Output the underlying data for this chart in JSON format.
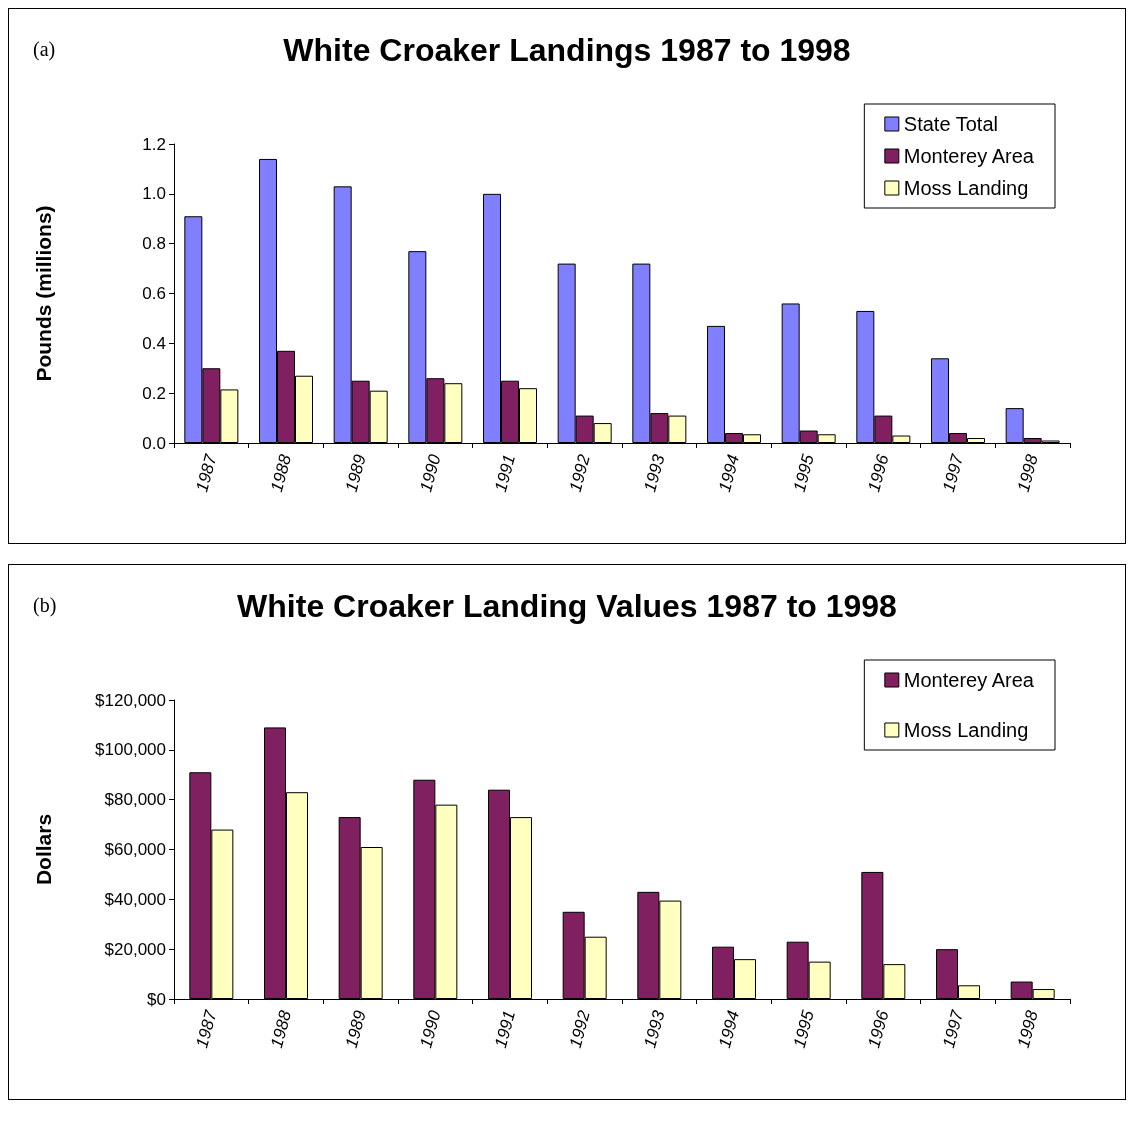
{
  "chart_data": [
    {
      "type": "bar",
      "title": "White Croaker Landings 1987 to 1998",
      "ylabel": "Pounds (millions)",
      "annotations": [
        "(a)"
      ],
      "categories": [
        "1987",
        "1988",
        "1989",
        "1990",
        "1991",
        "1992",
        "1993",
        "1994",
        "1995",
        "1996",
        "1997",
        "1998"
      ],
      "series": [
        {
          "name": "State Total",
          "color": "#8080ff",
          "values": [
            0.91,
            1.14,
            1.03,
            0.77,
            1.0,
            0.72,
            0.72,
            0.47,
            0.56,
            0.53,
            0.34,
            0.14
          ]
        },
        {
          "name": "Monterey Area",
          "color": "#802060",
          "values": [
            0.3,
            0.37,
            0.25,
            0.26,
            0.25,
            0.11,
            0.12,
            0.04,
            0.05,
            0.11,
            0.04,
            0.02
          ]
        },
        {
          "name": "Moss Landing",
          "color": "#ffffc0",
          "values": [
            0.215,
            0.27,
            0.21,
            0.24,
            0.22,
            0.08,
            0.11,
            0.035,
            0.035,
            0.03,
            0.02,
            0.01
          ]
        }
      ],
      "ylim": [
        0,
        1.2
      ],
      "yticks": [
        {
          "value": 0,
          "label": "0.0"
        },
        {
          "value": 0.2,
          "label": "0.2"
        },
        {
          "value": 0.4,
          "label": "0.4"
        },
        {
          "value": 0.6,
          "label": "0.6"
        },
        {
          "value": 0.8,
          "label": "0.8"
        },
        {
          "value": 1,
          "label": "1.0"
        },
        {
          "value": 1.2,
          "label": "1.2"
        }
      ],
      "grid": false,
      "legend": "top right"
    },
    {
      "type": "bar",
      "title": "White Croaker Landing Values 1987 to 1998",
      "ylabel": "Dollars",
      "annotations": [
        "(b)"
      ],
      "categories": [
        "1987",
        "1988",
        "1989",
        "1990",
        "1991",
        "1992",
        "1993",
        "1994",
        "1995",
        "1996",
        "1997",
        "1998"
      ],
      "series": [
        {
          "name": "Monterey Area",
          "color": "#802060",
          "values": [
            91000,
            109000,
            73000,
            88000,
            84000,
            35000,
            43000,
            21000,
            23000,
            51000,
            20000,
            7000
          ]
        },
        {
          "name": "Moss Landing",
          "color": "#ffffc0",
          "values": [
            68000,
            83000,
            61000,
            78000,
            73000,
            25000,
            39500,
            16000,
            15000,
            14000,
            5500,
            4000
          ]
        }
      ],
      "ylim": [
        0,
        120000
      ],
      "yticks": [
        {
          "value": 0,
          "label": "$0"
        },
        {
          "value": 20000,
          "label": "$20,000"
        },
        {
          "value": 40000,
          "label": "$40,000"
        },
        {
          "value": 60000,
          "label": "$60,000"
        },
        {
          "value": 80000,
          "label": "$80,000"
        },
        {
          "value": 100000,
          "label": "$100,000"
        },
        {
          "value": 120000,
          "label": "$120,000"
        }
      ],
      "grid": false,
      "legend": "top right"
    }
  ]
}
